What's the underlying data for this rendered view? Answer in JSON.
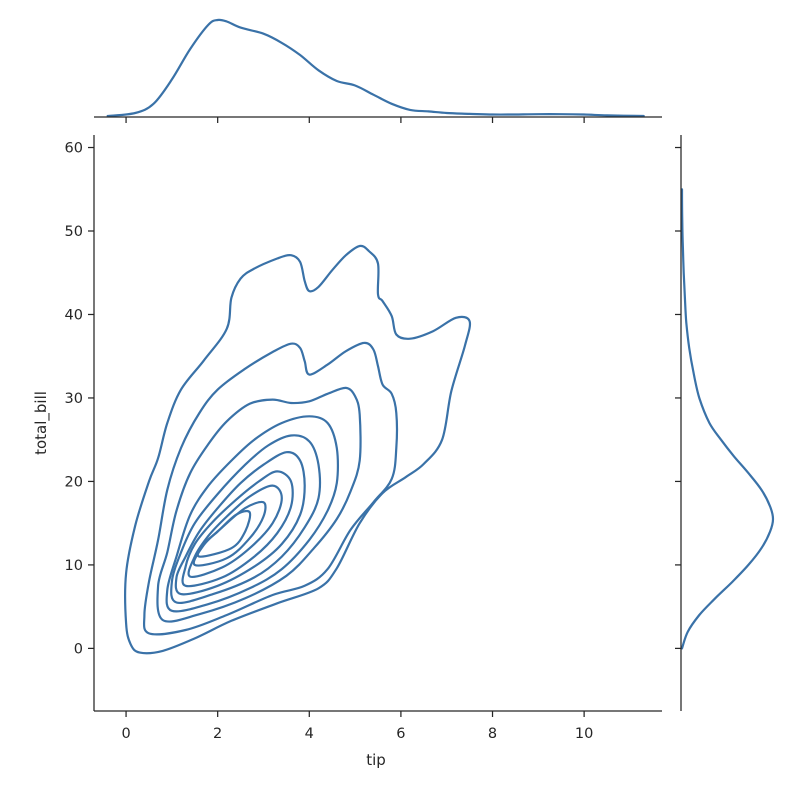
{
  "chart_data": {
    "type": "jointplot-kde",
    "color": "#3a72a8",
    "xlabel": "tip",
    "ylabel": "total_bill",
    "xlim": [
      -0.7,
      11.7
    ],
    "ylim": [
      -7.5,
      61.5
    ],
    "xticks": [
      0,
      2,
      4,
      6,
      8,
      10
    ],
    "yticks": [
      0,
      10,
      20,
      30,
      40,
      50,
      60
    ],
    "marginal_x": {
      "x": [
        -0.4,
        0.2,
        0.6,
        1.0,
        1.4,
        1.8,
        2.0,
        2.2,
        2.5,
        3.0,
        3.4,
        3.8,
        4.2,
        4.6,
        5.0,
        5.4,
        5.8,
        6.2,
        6.6,
        7.0,
        7.5,
        8.0,
        8.5,
        9.0,
        9.5,
        10.0,
        10.5,
        11.3
      ],
      "density": [
        0.0,
        0.01,
        0.04,
        0.12,
        0.22,
        0.3,
        0.315,
        0.31,
        0.29,
        0.27,
        0.24,
        0.2,
        0.15,
        0.115,
        0.1,
        0.07,
        0.04,
        0.02,
        0.015,
        0.01,
        0.007,
        0.005,
        0.005,
        0.006,
        0.006,
        0.005,
        0.002,
        0.0
      ]
    },
    "marginal_y": {
      "y": [
        0.0,
        2.0,
        4.0,
        6.0,
        8.0,
        10.0,
        12.0,
        14.0,
        15.5,
        17.0,
        19.0,
        21.0,
        23.0,
        25.0,
        27.0,
        30.0,
        33.0,
        36.0,
        39.0,
        42.0,
        45.0,
        48.0,
        51.0,
        55.0
      ],
      "density": [
        0.0,
        0.004,
        0.012,
        0.023,
        0.035,
        0.046,
        0.055,
        0.061,
        0.063,
        0.061,
        0.055,
        0.046,
        0.036,
        0.027,
        0.019,
        0.012,
        0.008,
        0.005,
        0.003,
        0.002,
        0.0012,
        0.0006,
        0.0002,
        0.0
      ]
    },
    "contours": [
      [
        [
          0.3,
          -0.5
        ],
        [
          0.8,
          -0.3
        ],
        [
          1.5,
          1.2
        ],
        [
          2.3,
          3.3
        ],
        [
          3.3,
          5.4
        ],
        [
          4.2,
          7.2
        ],
        [
          4.6,
          9.6
        ],
        [
          5.1,
          15.0
        ],
        [
          5.6,
          18.6
        ],
        [
          6.1,
          20.5
        ],
        [
          6.5,
          22.1
        ],
        [
          6.9,
          25.0
        ],
        [
          7.1,
          30.8
        ],
        [
          7.4,
          36.3
        ],
        [
          7.5,
          39.2
        ],
        [
          7.2,
          39.6
        ],
        [
          6.7,
          38.0
        ],
        [
          6.2,
          37.1
        ],
        [
          5.9,
          37.6
        ],
        [
          5.8,
          39.8
        ],
        [
          5.6,
          41.6
        ],
        [
          5.5,
          42.4
        ],
        [
          5.5,
          46.1
        ],
        [
          5.3,
          47.6
        ],
        [
          5.1,
          48.2
        ],
        [
          4.8,
          47.1
        ],
        [
          4.5,
          45.3
        ],
        [
          4.2,
          43.3
        ],
        [
          4.0,
          42.8
        ],
        [
          3.9,
          44.0
        ],
        [
          3.8,
          46.3
        ],
        [
          3.6,
          47.1
        ],
        [
          3.3,
          46.7
        ],
        [
          2.8,
          45.5
        ],
        [
          2.5,
          44.3
        ],
        [
          2.3,
          42.0
        ],
        [
          2.2,
          38.3
        ],
        [
          1.7,
          34.5
        ],
        [
          1.2,
          31.0
        ],
        [
          0.9,
          27.0
        ],
        [
          0.7,
          22.8
        ],
        [
          0.5,
          20.0
        ],
        [
          0.2,
          14.7
        ],
        [
          0.0,
          9.0
        ],
        [
          0.0,
          3.0
        ],
        [
          0.1,
          0.5
        ]
      ],
      [
        [
          0.5,
          1.8
        ],
        [
          1.3,
          2.2
        ],
        [
          2.2,
          4.0
        ],
        [
          3.2,
          6.4
        ],
        [
          3.9,
          7.5
        ],
        [
          4.4,
          9.5
        ],
        [
          4.9,
          14.2
        ],
        [
          5.4,
          17.5
        ],
        [
          5.8,
          20.3
        ],
        [
          5.9,
          24.0
        ],
        [
          5.9,
          28.2
        ],
        [
          5.8,
          30.5
        ],
        [
          5.6,
          31.6
        ],
        [
          5.5,
          33.8
        ],
        [
          5.4,
          35.8
        ],
        [
          5.2,
          36.6
        ],
        [
          4.8,
          35.6
        ],
        [
          4.4,
          34.0
        ],
        [
          4.0,
          32.8
        ],
        [
          3.9,
          34.4
        ],
        [
          3.8,
          36.0
        ],
        [
          3.6,
          36.5
        ],
        [
          3.2,
          35.5
        ],
        [
          2.6,
          33.5
        ],
        [
          2.0,
          31.0
        ],
        [
          1.6,
          28.2
        ],
        [
          1.2,
          24.0
        ],
        [
          0.9,
          19.0
        ],
        [
          0.7,
          13.0
        ],
        [
          0.5,
          8.0
        ],
        [
          0.4,
          4.0
        ]
      ],
      [
        [
          0.8,
          3.4
        ],
        [
          1.6,
          4.1
        ],
        [
          2.6,
          6.0
        ],
        [
          3.5,
          8.7
        ],
        [
          4.1,
          12.0
        ],
        [
          4.6,
          15.5
        ],
        [
          4.9,
          18.8
        ],
        [
          5.1,
          22.5
        ],
        [
          5.1,
          28.0
        ],
        [
          5.0,
          30.2
        ],
        [
          4.8,
          31.2
        ],
        [
          4.4,
          30.5
        ],
        [
          4.0,
          29.6
        ],
        [
          3.6,
          29.4
        ],
        [
          3.2,
          29.8
        ],
        [
          2.7,
          29.3
        ],
        [
          2.2,
          27.2
        ],
        [
          1.8,
          24.5
        ],
        [
          1.4,
          21.0
        ],
        [
          1.1,
          16.5
        ],
        [
          0.9,
          11.5
        ],
        [
          0.7,
          7.5
        ]
      ],
      [
        [
          1.0,
          4.5
        ],
        [
          1.8,
          5.3
        ],
        [
          2.7,
          7.2
        ],
        [
          3.4,
          9.5
        ],
        [
          4.0,
          13.0
        ],
        [
          4.4,
          16.5
        ],
        [
          4.6,
          19.8
        ],
        [
          4.6,
          24.0
        ],
        [
          4.4,
          27.0
        ],
        [
          4.0,
          27.8
        ],
        [
          3.4,
          27.0
        ],
        [
          2.8,
          25.0
        ],
        [
          2.3,
          22.5
        ],
        [
          1.8,
          19.5
        ],
        [
          1.4,
          16.0
        ],
        [
          1.1,
          11.0
        ],
        [
          0.9,
          7.0
        ]
      ],
      [
        [
          1.1,
          5.5
        ],
        [
          1.9,
          6.5
        ],
        [
          2.8,
          8.5
        ],
        [
          3.4,
          11.0
        ],
        [
          3.9,
          14.5
        ],
        [
          4.2,
          18.0
        ],
        [
          4.2,
          22.0
        ],
        [
          4.0,
          24.8
        ],
        [
          3.6,
          25.5
        ],
        [
          3.1,
          24.3
        ],
        [
          2.6,
          22.0
        ],
        [
          2.0,
          18.5
        ],
        [
          1.5,
          15.0
        ],
        [
          1.2,
          11.5
        ],
        [
          1.0,
          8.0
        ]
      ],
      [
        [
          1.2,
          6.5
        ],
        [
          2.0,
          7.5
        ],
        [
          2.8,
          9.8
        ],
        [
          3.4,
          12.5
        ],
        [
          3.8,
          16.0
        ],
        [
          3.9,
          19.5
        ],
        [
          3.8,
          22.5
        ],
        [
          3.5,
          23.5
        ],
        [
          3.0,
          22.0
        ],
        [
          2.5,
          19.8
        ],
        [
          2.0,
          16.8
        ],
        [
          1.6,
          14.0
        ],
        [
          1.3,
          11.0
        ],
        [
          1.1,
          8.5
        ]
      ],
      [
        [
          1.3,
          7.5
        ],
        [
          2.1,
          8.5
        ],
        [
          2.8,
          11.0
        ],
        [
          3.3,
          13.8
        ],
        [
          3.6,
          17.0
        ],
        [
          3.6,
          20.0
        ],
        [
          3.3,
          21.2
        ],
        [
          2.9,
          20.0
        ],
        [
          2.4,
          17.8
        ],
        [
          1.9,
          15.2
        ],
        [
          1.5,
          12.5
        ],
        [
          1.3,
          9.8
        ]
      ],
      [
        [
          1.4,
          8.6
        ],
        [
          2.1,
          9.7
        ],
        [
          2.7,
          12.0
        ],
        [
          3.2,
          15.0
        ],
        [
          3.4,
          18.0
        ],
        [
          3.2,
          19.5
        ],
        [
          2.7,
          18.2
        ],
        [
          2.2,
          15.8
        ],
        [
          1.8,
          13.5
        ],
        [
          1.5,
          11.0
        ]
      ],
      [
        [
          1.5,
          10.0
        ],
        [
          2.2,
          10.8
        ],
        [
          2.7,
          13.2
        ],
        [
          3.0,
          15.8
        ],
        [
          3.0,
          17.5
        ],
        [
          2.6,
          16.8
        ],
        [
          2.1,
          14.5
        ],
        [
          1.7,
          12.4
        ]
      ],
      [
        [
          1.6,
          11.0
        ],
        [
          2.3,
          12.0
        ],
        [
          2.6,
          14.0
        ],
        [
          2.7,
          16.3
        ],
        [
          2.4,
          16.0
        ],
        [
          2.0,
          14.0
        ],
        [
          1.7,
          12.5
        ]
      ]
    ]
  }
}
